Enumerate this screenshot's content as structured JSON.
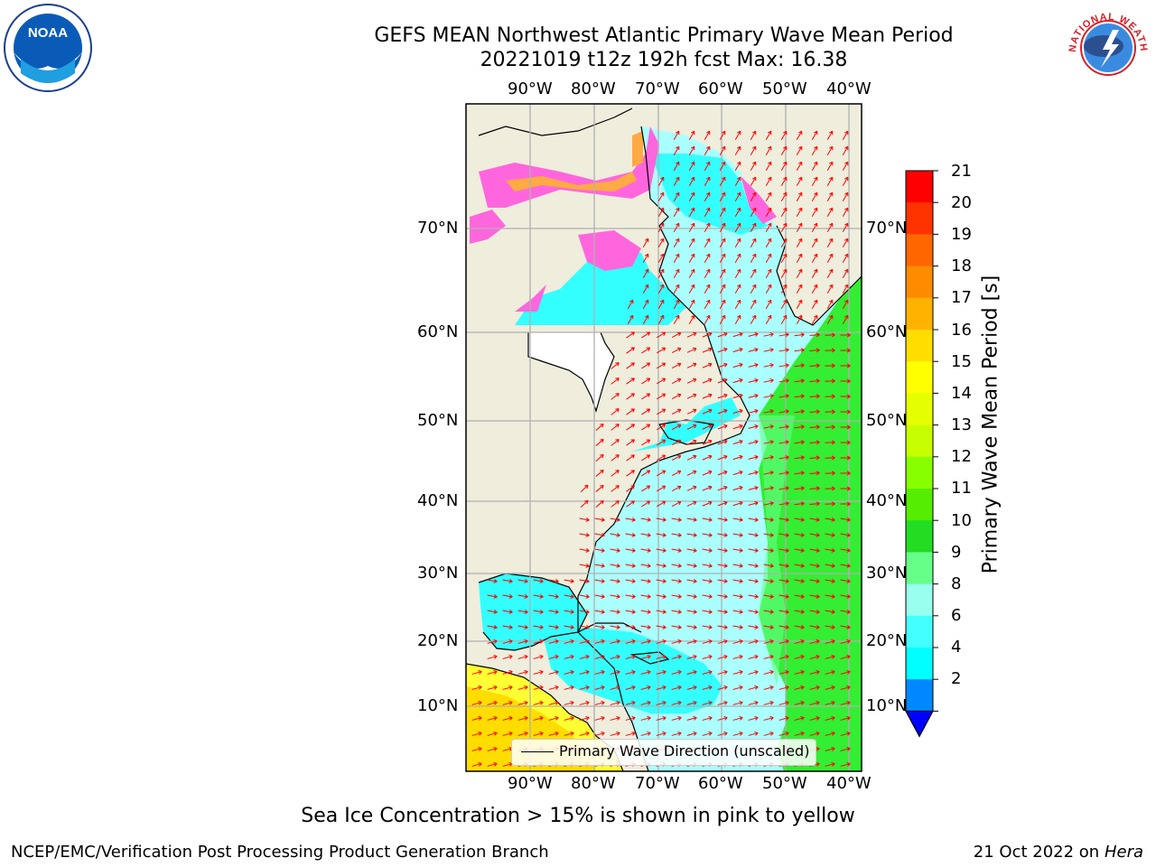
{
  "title_line1": "GEFS MEAN Northwest Atlantic Primary Wave Mean Period",
  "title_line2": "20221019 t12z 192h fcst   Max: 16.38",
  "lon_labels": [
    "90°W",
    "80°W",
    "70°W",
    "60°W",
    "50°W",
    "40°W"
  ],
  "lat_labels": [
    "70°N",
    "60°N",
    "50°N",
    "40°N",
    "30°N",
    "20°N",
    "10°N"
  ],
  "colorbar": {
    "label": "Primary Wave Mean Period [s]",
    "ticks": [
      "21",
      "20",
      "19",
      "18",
      "17",
      "16",
      "15",
      "14",
      "13",
      "12",
      "11",
      "10",
      "9",
      "8",
      "6",
      "4",
      "2"
    ],
    "colors": [
      "#ff0000",
      "#ff3300",
      "#ff6600",
      "#ff8c00",
      "#ffb300",
      "#ffdd00",
      "#ffff00",
      "#e6ff00",
      "#c8ff00",
      "#88ff00",
      "#55ee00",
      "#22dd22",
      "#66ff88",
      "#99ffee",
      "#44ffff",
      "#00ffff",
      "#0088ff",
      "#0000ff"
    ]
  },
  "legend_text": "Primary Wave Direction (unscaled)",
  "note": "Sea Ice Concentration > 15% is shown in pink to yellow",
  "footer_left": "NCEP/EMC/Verification Post Processing Product Generation Branch",
  "footer_date": "21 Oct 2022 on",
  "footer_host": "Hera",
  "logo_left_text": "NOAA",
  "logo_right_text": "NATIONAL WEATHER SERVICE",
  "colors": {
    "land": "#efeddc",
    "ocean_light": "#aaffff",
    "ocean_cyan": "#33ffff",
    "ocean_green": "#33ee33",
    "ice_pink": "#ff66dd",
    "ice_orange": "#ffaa44",
    "arrow": "#ff0000",
    "grid": "#b0b0b0"
  }
}
